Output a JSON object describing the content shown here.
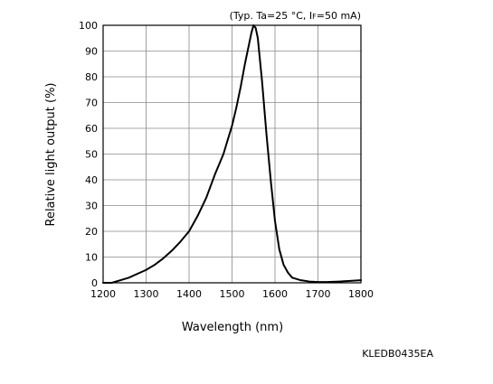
{
  "chart_data": {
    "type": "line",
    "annotation": {
      "prefix": "(Typ. Ta=25 °C, I",
      "subscript": "F",
      "suffix": "=50 mA)"
    },
    "xlabel": "Wavelength (nm)",
    "ylabel": "Relative light output (%)",
    "xlim": [
      1200,
      1800
    ],
    "ylim": [
      0,
      100
    ],
    "x_ticks": [
      "1200",
      "1300",
      "1400",
      "1500",
      "1600",
      "1700",
      "1800"
    ],
    "y_ticks": [
      "0",
      "10",
      "20",
      "30",
      "40",
      "50",
      "60",
      "70",
      "80",
      "90",
      "100"
    ],
    "grid": true,
    "series": [
      {
        "x": [
          1200,
          1220,
          1240,
          1260,
          1280,
          1300,
          1320,
          1340,
          1360,
          1380,
          1400,
          1420,
          1440,
          1460,
          1480,
          1500,
          1510,
          1520,
          1530,
          1540,
          1545,
          1550,
          1555,
          1560,
          1570,
          1580,
          1590,
          1600,
          1610,
          1620,
          1630,
          1640,
          1660,
          1680,
          1700,
          1720,
          1750,
          1800
        ],
        "y": [
          0,
          0,
          1,
          2,
          3.5,
          5,
          7,
          9.5,
          12.5,
          16,
          20,
          26,
          33,
          42,
          50,
          61,
          68,
          76,
          85,
          93,
          97,
          100,
          99,
          95,
          78,
          58,
          40,
          24,
          13,
          7,
          4,
          2,
          1,
          0.5,
          0.3,
          0.3,
          0.5,
          1
        ]
      }
    ],
    "figure_code": "KLEDB0435EA"
  }
}
